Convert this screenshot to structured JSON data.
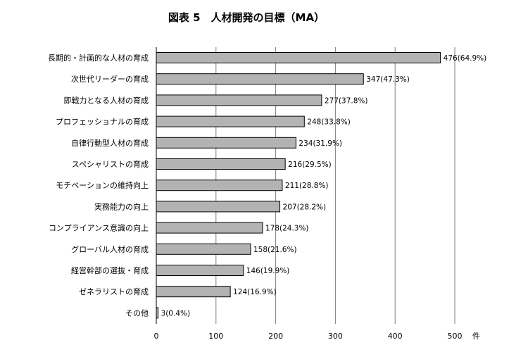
{
  "chart_data": {
    "type": "bar",
    "orientation": "horizontal",
    "title": "図表 5　人材開発の目標（MA）",
    "categories": [
      "長期的・計画的な人材の育成",
      "次世代リーダーの育成",
      "即戦力となる人材の育成",
      "プロフェッショナルの育成",
      "自律行動型人材の育成",
      "スペシャリストの育成",
      "モチベーションの維持向上",
      "実務能力の向上",
      "コンプライアンス意識の向上",
      "グローバル人材の育成",
      "経営幹部の選抜・育成",
      "ゼネラリストの育成",
      "その他"
    ],
    "values": [
      476,
      347,
      277,
      248,
      234,
      216,
      211,
      207,
      178,
      158,
      146,
      124,
      3
    ],
    "data_labels": [
      "476(64.9%)",
      "347(47.3%)",
      "277(37.8%)",
      "248(33.8%)",
      "234(31.9%)",
      "216(29.5%)",
      "211(28.8%)",
      "207(28.2%)",
      "178(24.3%)",
      "158(21.6%)",
      "146(19.9%)",
      "124(16.9%)",
      "3(0.4%)"
    ],
    "xlim": [
      0,
      500
    ],
    "xticks": [
      0,
      100,
      200,
      300,
      400,
      500
    ],
    "xlabel": "件",
    "grid": true,
    "bar_color": "#b3b3b3",
    "bar_edge_color": "#000000",
    "grid_color": "#7f7f7f"
  }
}
